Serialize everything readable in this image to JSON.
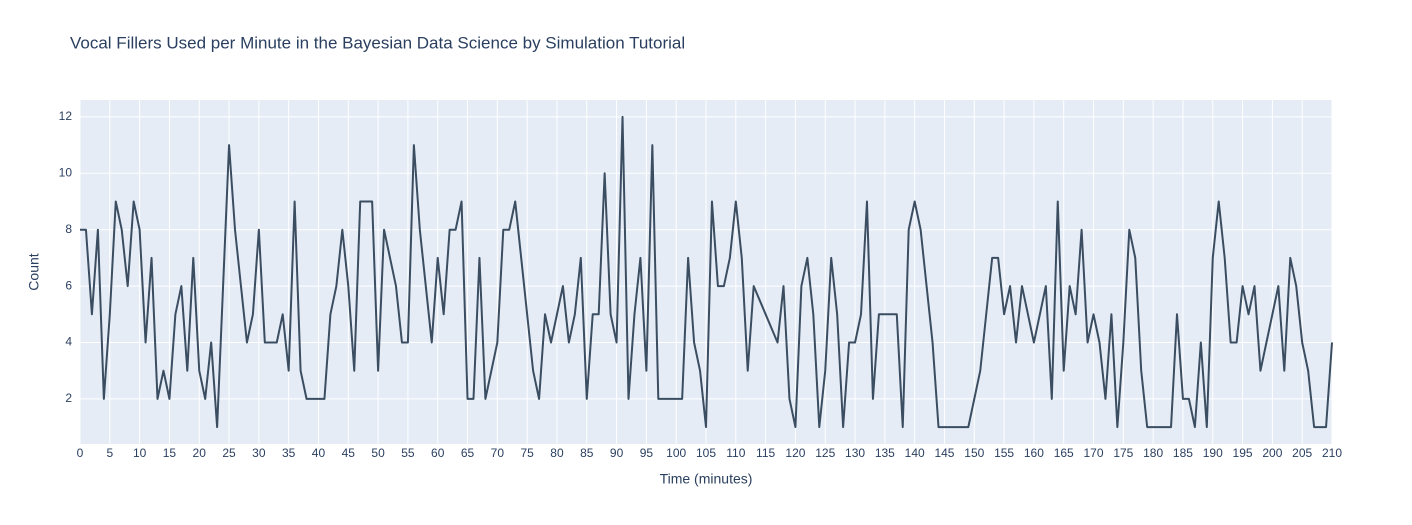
{
  "chart_data": {
    "type": "line",
    "title": "Vocal Fillers Used per Minute in the Bayesian Data Science by Simulation Tutorial",
    "x_label": "Time (minutes)",
    "y_label": "Count",
    "x": [
      0,
      1,
      2,
      3,
      4,
      5,
      6,
      7,
      8,
      9,
      10,
      11,
      12,
      13,
      14,
      15,
      16,
      17,
      18,
      19,
      20,
      21,
      22,
      23,
      24,
      25,
      26,
      27,
      28,
      29,
      30,
      31,
      32,
      33,
      34,
      35,
      36,
      37,
      38,
      39,
      40,
      41,
      42,
      43,
      44,
      45,
      46,
      47,
      48,
      49,
      50,
      51,
      52,
      53,
      54,
      55,
      56,
      57,
      58,
      59,
      60,
      61,
      62,
      63,
      64,
      65,
      66,
      67,
      68,
      69,
      70,
      71,
      72,
      73,
      74,
      75,
      76,
      77,
      78,
      79,
      80,
      81,
      82,
      83,
      84,
      85,
      86,
      87,
      88,
      89,
      90,
      91,
      92,
      93,
      94,
      95,
      96,
      97,
      98,
      99,
      100,
      101,
      102,
      103,
      104,
      105,
      106,
      107,
      108,
      109,
      110,
      111,
      112,
      113,
      114,
      115,
      116,
      117,
      118,
      119,
      120,
      121,
      122,
      123,
      124,
      125,
      126,
      127,
      128,
      129,
      130,
      131,
      132,
      133,
      134,
      135,
      136,
      137,
      138,
      139,
      140,
      141,
      142,
      143,
      144,
      145,
      146,
      147,
      148,
      149,
      150,
      151,
      152,
      153,
      154,
      155,
      156,
      157,
      158,
      159,
      160,
      161,
      162,
      163,
      164,
      165,
      166,
      167,
      168,
      169,
      170,
      171,
      172,
      173,
      174,
      175,
      176,
      177,
      178,
      179,
      180,
      181,
      182,
      183,
      184,
      185,
      186,
      187,
      188,
      189,
      190,
      191,
      192,
      193,
      194,
      195,
      196,
      197,
      198,
      199,
      200,
      201,
      202,
      203,
      204,
      205,
      206,
      207,
      208,
      209,
      210
    ],
    "series": [
      {
        "name": "Count",
        "color": "#3b4d61",
        "values": [
          8,
          8,
          5,
          8,
          2,
          5,
          9,
          8,
          6,
          9,
          8,
          4,
          7,
          2,
          3,
          2,
          5,
          6,
          3,
          7,
          3,
          2,
          4,
          1,
          6,
          11,
          8,
          6,
          4,
          5,
          8,
          4,
          4,
          4,
          5,
          3,
          9,
          3,
          2,
          2,
          2,
          2,
          5,
          6,
          8,
          6,
          3,
          9,
          9,
          9,
          3,
          8,
          7,
          6,
          4,
          4,
          11,
          8,
          6,
          4,
          7,
          5,
          8,
          8,
          9,
          2,
          2,
          7,
          2,
          3,
          4,
          8,
          8,
          9,
          7,
          5,
          3,
          2,
          5,
          4,
          5,
          6,
          4,
          5,
          7,
          2,
          5,
          5,
          10,
          5,
          4,
          12,
          2,
          5,
          7,
          3,
          11,
          2,
          2,
          2,
          2,
          2,
          7,
          4,
          3,
          1,
          9,
          6,
          6,
          7,
          9,
          7,
          3,
          6,
          5.5,
          5,
          4.5,
          4,
          6,
          2,
          1,
          6,
          7,
          5,
          1,
          3,
          7,
          5,
          1,
          4,
          4,
          5,
          9,
          2,
          5,
          5,
          5,
          5,
          1,
          8,
          9,
          8,
          6,
          4,
          1,
          1,
          1,
          1,
          1,
          1,
          2,
          3,
          5,
          7,
          7,
          5,
          6,
          4,
          6,
          5,
          4,
          5,
          6,
          2,
          9,
          3,
          6,
          5,
          8,
          4,
          5,
          4,
          2,
          5,
          1,
          4,
          8,
          7,
          3,
          1,
          1,
          1,
          1,
          1,
          5,
          2,
          2,
          1,
          4,
          1,
          7,
          9,
          7,
          4,
          4,
          6,
          5,
          6,
          3,
          4,
          5,
          6,
          3,
          7,
          6,
          4,
          3,
          1,
          1,
          1,
          4
        ]
      }
    ],
    "xlim": [
      0,
      210
    ],
    "xticks": [
      0,
      5,
      10,
      15,
      20,
      25,
      30,
      35,
      40,
      45,
      50,
      55,
      60,
      65,
      70,
      75,
      80,
      85,
      90,
      95,
      100,
      105,
      110,
      115,
      120,
      125,
      130,
      135,
      140,
      145,
      150,
      155,
      160,
      165,
      170,
      175,
      180,
      185,
      190,
      195,
      200,
      205,
      210
    ],
    "ylim": [
      0.4,
      12.6
    ],
    "yticks": [
      2,
      4,
      6,
      8,
      10,
      12
    ],
    "grid": true
  }
}
